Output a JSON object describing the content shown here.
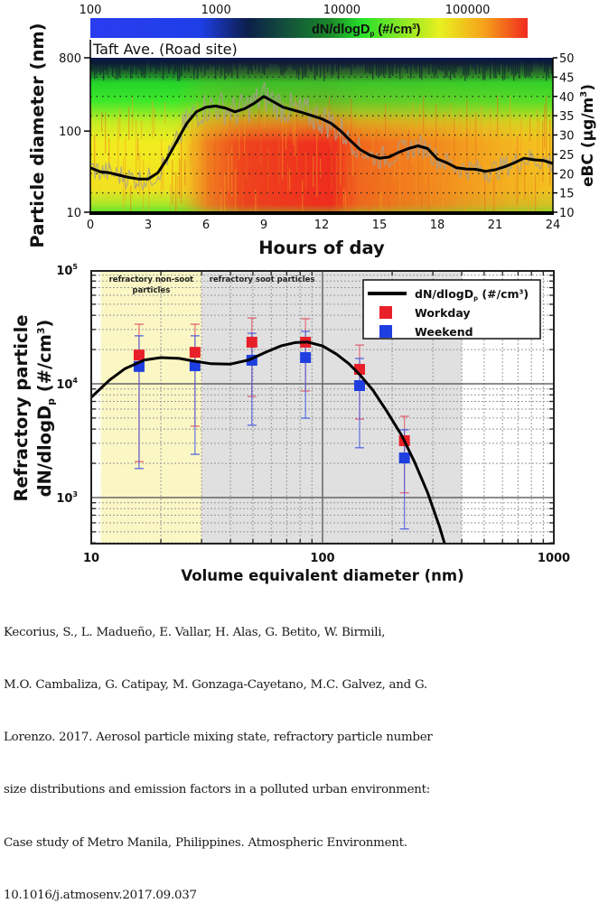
{
  "chart_data": [
    {
      "type": "heatmap",
      "title": "Taft Ave. (Road site)",
      "xlabel": "Hours of day",
      "ylabel": "Particle diameter (nm)",
      "y2label": "eBC (µg/m³)",
      "xlim": [
        0,
        24
      ],
      "xticks": [
        "0",
        "3",
        "6",
        "9",
        "12",
        "15",
        "18",
        "21",
        "24"
      ],
      "ylim": [
        10,
        800
      ],
      "yscale": "log",
      "yticks": [
        "10",
        "100",
        "800"
      ],
      "y2lim": [
        10,
        50
      ],
      "y2ticks": [
        "10",
        "15",
        "20",
        "25",
        "30",
        "35",
        "40",
        "45",
        "50"
      ],
      "colorbar": {
        "label": "dN/dlogDp (#/cm3)",
        "ticks": [
          "100",
          "1000",
          "10000",
          "100000"
        ],
        "range": [
          100,
          300000
        ],
        "colors": [
          "#2a3cf0",
          "#1e3fe8",
          "#0c1e4a",
          "#1a8a2a",
          "#26e02a",
          "#e8f020",
          "#f6a21a",
          "#f02a1e"
        ]
      },
      "ebc_series": {
        "name": "eBC",
        "x": [
          0,
          0.5,
          1,
          1.5,
          2,
          2.5,
          3,
          3.5,
          4,
          4.5,
          5,
          5.5,
          6,
          6.5,
          7,
          7.5,
          8,
          8.5,
          9,
          9.5,
          10,
          10.5,
          11,
          11.5,
          12,
          12.5,
          13,
          13.5,
          14,
          14.5,
          15,
          15.5,
          16,
          16.5,
          17,
          17.5,
          18,
          18.5,
          19,
          19.5,
          20,
          20.5,
          21,
          21.5,
          22,
          22.5,
          23,
          23.5,
          24
        ],
        "y": [
          21.5,
          20.5,
          20.2,
          19.6,
          19.0,
          18.6,
          18.6,
          20.2,
          24.0,
          28.5,
          33.0,
          36.0,
          37.2,
          37.5,
          37.0,
          36.0,
          36.8,
          38.2,
          40.0,
          38.6,
          37.2,
          36.5,
          35.8,
          35.0,
          34.2,
          33.0,
          31.0,
          28.5,
          26.2,
          24.8,
          24.0,
          24.3,
          25.5,
          26.5,
          27.2,
          26.5,
          23.8,
          22.8,
          21.5,
          21.2,
          21.1,
          20.6,
          21.0,
          21.8,
          22.8,
          24.0,
          23.6,
          23.4,
          22.6
        ]
      }
    },
    {
      "type": "scatter",
      "xlabel": "Volume equivalent diameter (nm)",
      "ylabel_line1": "Refractory particle",
      "ylabel_line2": "dN/dlogDp (#/cm3)",
      "xscale": "log",
      "xlim": [
        10,
        1000
      ],
      "xticks": [
        "10",
        "100",
        "1000"
      ],
      "yscale": "log",
      "ylim": [
        394,
        100000
      ],
      "yticks": [
        "10^3",
        "10^4",
        "10^5"
      ],
      "regions": [
        {
          "label_line1": "refractory non-soot",
          "label_line2": "particles",
          "from": 11,
          "to": 30,
          "color": "#fbf7c4"
        },
        {
          "label_line1": "refractory soot particles",
          "label_line2": "",
          "from": 30,
          "to": 400,
          "color": "#e0e0e0"
        }
      ],
      "legend": {
        "position": "top-right",
        "entries": [
          {
            "label": "dN/dlogDp (#/cm3)",
            "type": "line",
            "color": "#000000"
          },
          {
            "label": "Workday",
            "type": "square",
            "color": "#e8202a"
          },
          {
            "label": "Weekend",
            "type": "square",
            "color": "#1e3ee0"
          }
        ]
      },
      "series": [
        {
          "name": "Workday",
          "color": "#e8202a",
          "x": [
            16.1,
            28.1,
            49.5,
            84.4,
            144.6,
            226
          ],
          "y": [
            17900,
            18900,
            23200,
            23200,
            13400,
            3160
          ],
          "err_high": [
            33400,
            33400,
            37900,
            37300,
            21900,
            5180
          ],
          "err_low": [
            2070,
            4240,
            7740,
            8640,
            4900,
            1100
          ]
        },
        {
          "name": "Weekend",
          "color": "#1e3ee0",
          "x": [
            16.1,
            28.1,
            49.5,
            84.4,
            144.6,
            226
          ],
          "y": [
            14200,
            14400,
            16100,
            17000,
            9640,
            2230
          ],
          "err_high": [
            26400,
            26400,
            27800,
            28900,
            16700,
            3940
          ],
          "err_low": [
            1800,
            2400,
            4320,
            4990,
            2740,
            530
          ]
        }
      ],
      "fit_line": {
        "name": "dN/dlogDp (#/cm3)",
        "x": [
          10,
          12,
          14,
          17,
          20,
          24,
          28,
          33,
          40,
          48,
          57,
          66,
          76,
          86,
          100,
          115,
          130,
          145,
          165,
          190,
          220,
          250,
          285,
          320,
          337
        ],
        "y": [
          7600,
          10800,
          13600,
          16200,
          17000,
          16700,
          15800,
          15000,
          14900,
          16200,
          19000,
          21500,
          23000,
          23300,
          21500,
          18200,
          15000,
          12000,
          8800,
          5700,
          3500,
          2050,
          1100,
          560,
          394
        ]
      }
    }
  ],
  "citation": [
    "Kecorius, S., L. Madueño, E. Vallar, H. Alas, G. Betito, W. Birmili,",
    "M.O. Cambaliza, G. Catipay, M. Gonzaga-Cayetano, M.C. Galvez, and G.",
    "Lorenzo. 2017. Aerosol particle mixing state, refractory particle number",
    "size distributions and emission factors in a polluted urban environment:",
    "Case study of Metro Manila, Philippines. Atmospheric Environment.",
    "10.1016/j.atmosenv.2017.09.037"
  ]
}
